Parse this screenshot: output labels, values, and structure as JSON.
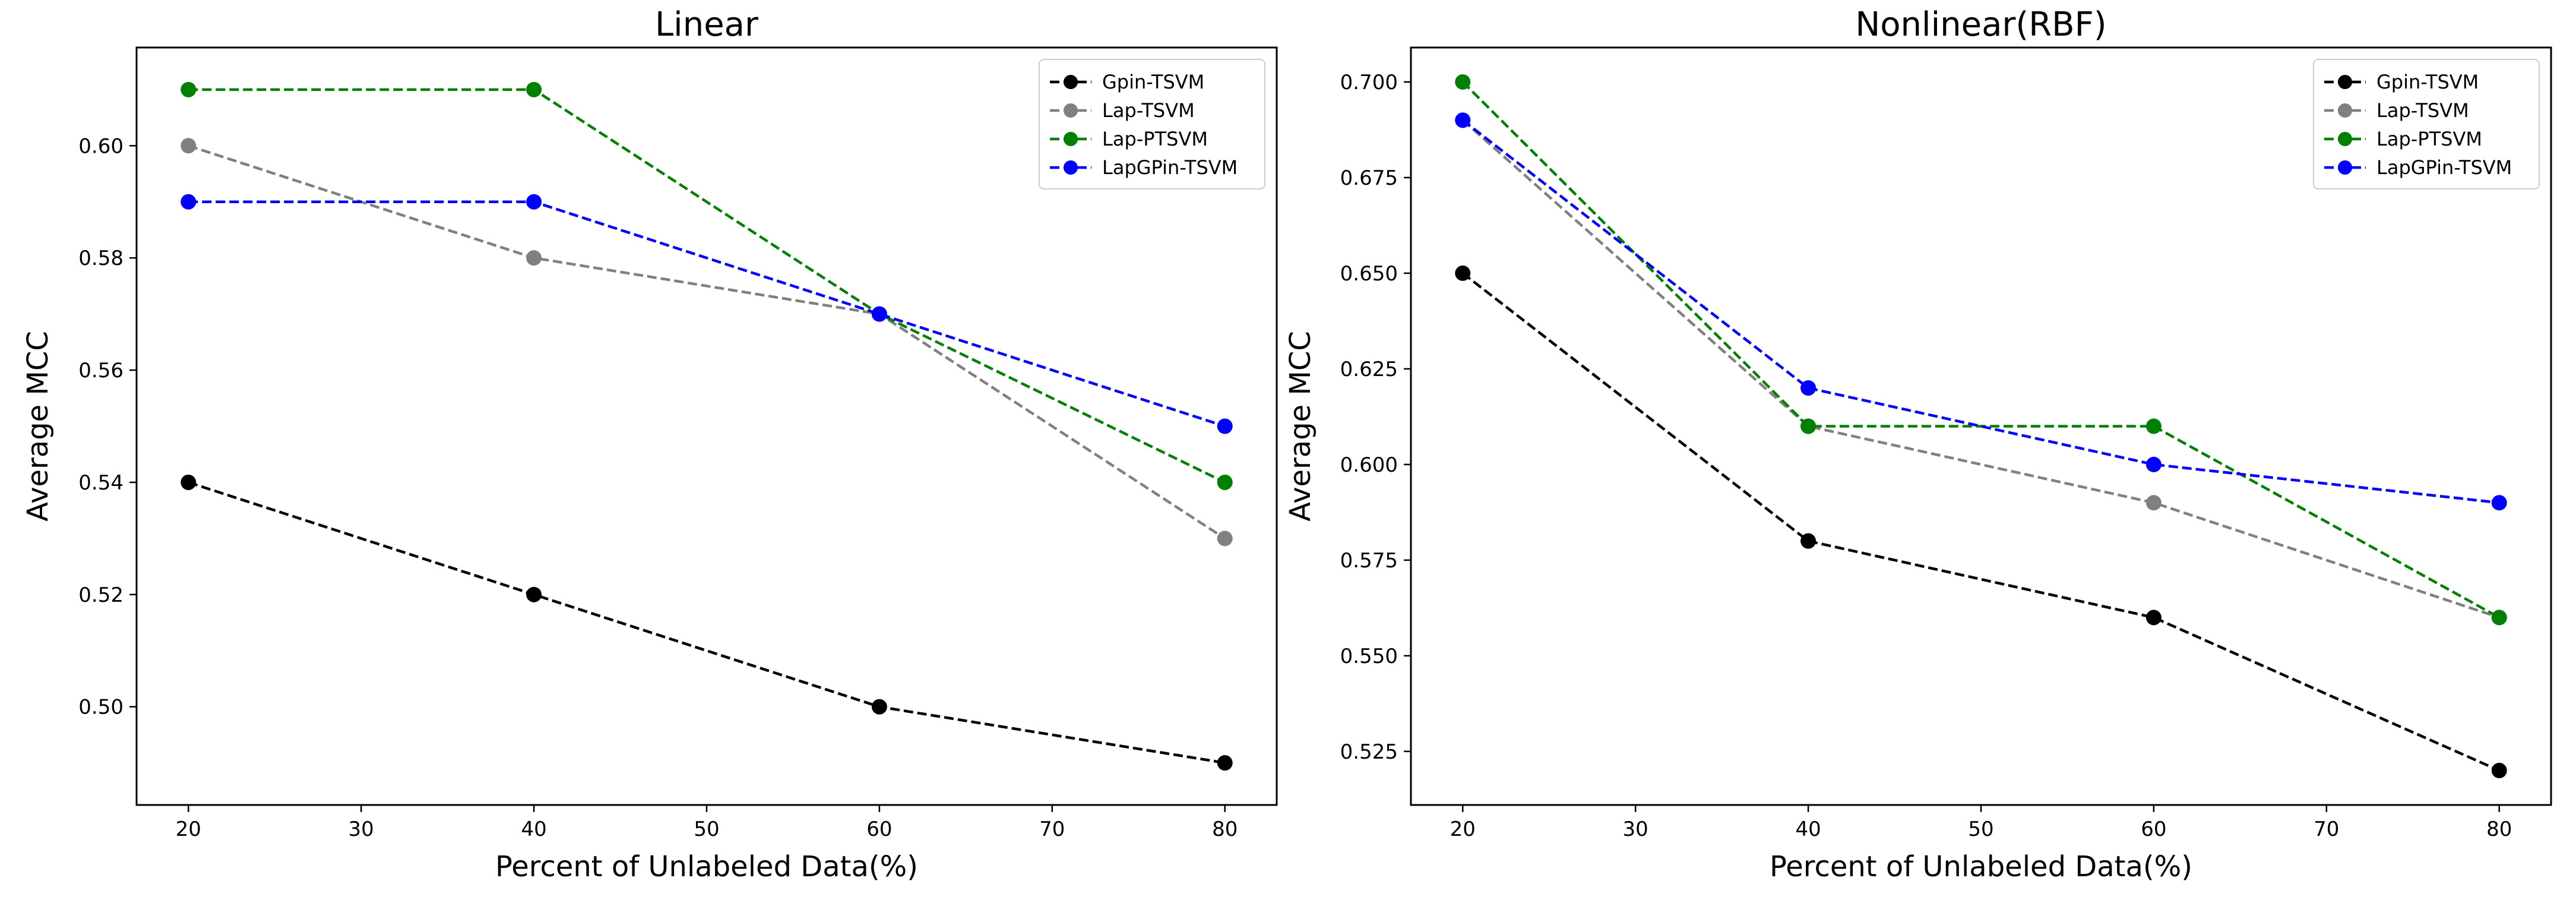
{
  "chart_data": [
    {
      "type": "line",
      "title": "Linear",
      "xlabel": "Percent of Unlabeled Data(%)",
      "ylabel": "Average MCC",
      "xlim": [
        17,
        83
      ],
      "ylim": [
        0.4825,
        0.6175
      ],
      "xticks": [
        20,
        30,
        40,
        50,
        60,
        70,
        80
      ],
      "xtick_labels": [
        "20",
        "30",
        "40",
        "50",
        "60",
        "70",
        "80"
      ],
      "yticks": [
        0.5,
        0.52,
        0.54,
        0.56,
        0.58,
        0.6
      ],
      "ytick_labels": [
        "0.50",
        "0.52",
        "0.54",
        "0.56",
        "0.58",
        "0.60"
      ],
      "legend_position": "top-right",
      "x": [
        20,
        40,
        60,
        80
      ],
      "series": [
        {
          "name": "Gpin-TSVM",
          "color": "#000000",
          "values": [
            0.54,
            0.52,
            0.5,
            0.49
          ]
        },
        {
          "name": "Lap-TSVM",
          "color": "#808080",
          "values": [
            0.6,
            0.58,
            0.57,
            0.53
          ]
        },
        {
          "name": "Lap-PTSVM",
          "color": "#008000",
          "values": [
            0.61,
            0.61,
            0.57,
            0.54
          ]
        },
        {
          "name": "LapGPin-TSVM",
          "color": "#0000ff",
          "values": [
            0.59,
            0.59,
            0.57,
            0.55
          ]
        }
      ]
    },
    {
      "type": "line",
      "title": "Nonlinear(RBF)",
      "xlabel": "Percent of Unlabeled Data(%)",
      "ylabel": "Average MCC",
      "xlim": [
        17,
        83
      ],
      "ylim": [
        0.511,
        0.709
      ],
      "xticks": [
        20,
        30,
        40,
        50,
        60,
        70,
        80
      ],
      "xtick_labels": [
        "20",
        "30",
        "40",
        "50",
        "60",
        "70",
        "80"
      ],
      "yticks": [
        0.525,
        0.55,
        0.575,
        0.6,
        0.625,
        0.65,
        0.675,
        0.7
      ],
      "ytick_labels": [
        "0.525",
        "0.550",
        "0.575",
        "0.600",
        "0.625",
        "0.650",
        "0.675",
        "0.700"
      ],
      "legend_position": "top-right",
      "x": [
        20,
        40,
        60,
        80
      ],
      "series": [
        {
          "name": "Gpin-TSVM",
          "color": "#000000",
          "values": [
            0.65,
            0.58,
            0.56,
            0.52
          ]
        },
        {
          "name": "Lap-TSVM",
          "color": "#808080",
          "values": [
            0.69,
            0.61,
            0.59,
            0.56
          ]
        },
        {
          "name": "Lap-PTSVM",
          "color": "#008000",
          "values": [
            0.7,
            0.61,
            0.61,
            0.56
          ]
        },
        {
          "name": "LapGPin-TSVM",
          "color": "#0000ff",
          "values": [
            0.69,
            0.62,
            0.6,
            0.59
          ]
        }
      ]
    }
  ]
}
